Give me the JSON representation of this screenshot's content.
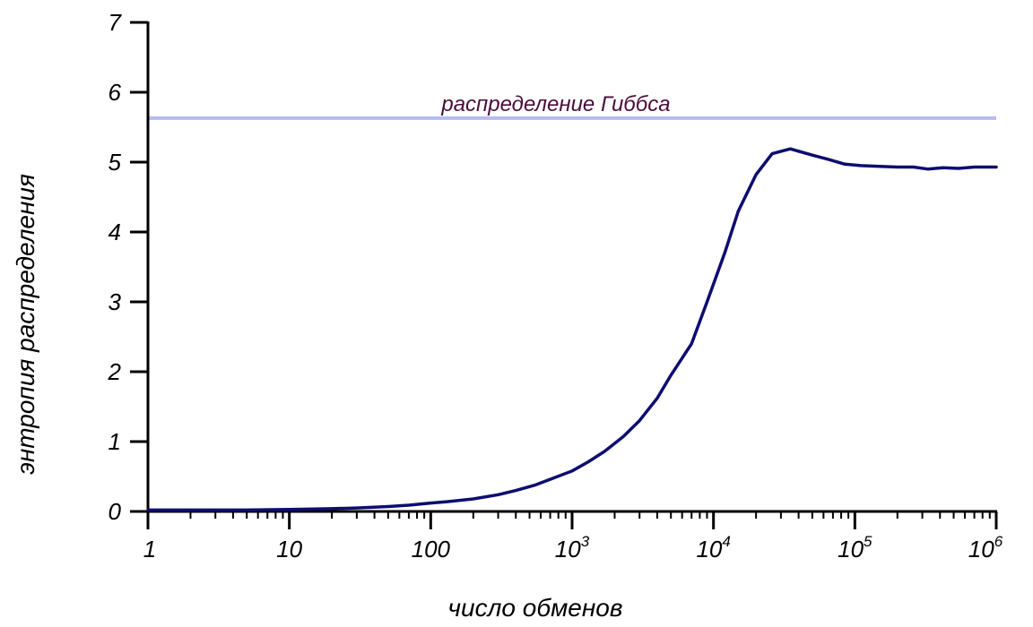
{
  "chart_data": {
    "type": "line",
    "title": "",
    "xlabel": "число обменов",
    "ylabel": "энтропия распределения",
    "x_scale": "log10",
    "xlim": [
      1,
      1000000
    ],
    "ylim": [
      0,
      7
    ],
    "grid": false,
    "x_ticks": [
      {
        "value": 1,
        "label": "1"
      },
      {
        "value": 10,
        "label": "10"
      },
      {
        "value": 100,
        "label": "100"
      },
      {
        "value": 1000,
        "label": "10",
        "exp": "3"
      },
      {
        "value": 10000,
        "label": "10",
        "exp": "4"
      },
      {
        "value": 100000,
        "label": "10",
        "exp": "5"
      },
      {
        "value": 1000000,
        "label": "10",
        "exp": "6"
      }
    ],
    "y_ticks": [
      {
        "value": 0,
        "label": "0"
      },
      {
        "value": 1,
        "label": "1"
      },
      {
        "value": 2,
        "label": "2"
      },
      {
        "value": 3,
        "label": "3"
      },
      {
        "value": 4,
        "label": "4"
      },
      {
        "value": 5,
        "label": "5"
      },
      {
        "value": 6,
        "label": "6"
      },
      {
        "value": 7,
        "label": "7"
      }
    ],
    "reference_line": {
      "label": "распределение Гиббса",
      "y": 5.63,
      "color": "#b7b9f2",
      "label_color": "#4a0d3b"
    },
    "series": [
      {
        "color": "#0d0d70",
        "points": [
          [
            1,
            0.02
          ],
          [
            2,
            0.02
          ],
          [
            3,
            0.02
          ],
          [
            5,
            0.02
          ],
          [
            10,
            0.03
          ],
          [
            20,
            0.04
          ],
          [
            30,
            0.05
          ],
          [
            50,
            0.07
          ],
          [
            70,
            0.09
          ],
          [
            100,
            0.12
          ],
          [
            130,
            0.14
          ],
          [
            200,
            0.18
          ],
          [
            300,
            0.24
          ],
          [
            400,
            0.3
          ],
          [
            550,
            0.38
          ],
          [
            700,
            0.46
          ],
          [
            1000,
            0.58
          ],
          [
            1300,
            0.71
          ],
          [
            1700,
            0.86
          ],
          [
            2300,
            1.07
          ],
          [
            3000,
            1.3
          ],
          [
            4000,
            1.62
          ],
          [
            5000,
            1.95
          ],
          [
            7000,
            2.4
          ],
          [
            9000,
            3.0
          ],
          [
            12000,
            3.7
          ],
          [
            15000,
            4.3
          ],
          [
            20000,
            4.82
          ],
          [
            26000,
            5.12
          ],
          [
            35000,
            5.19
          ],
          [
            50000,
            5.1
          ],
          [
            65000,
            5.04
          ],
          [
            85000,
            4.97
          ],
          [
            110000,
            4.95
          ],
          [
            150000,
            4.94
          ],
          [
            200000,
            4.93
          ],
          [
            260000,
            4.93
          ],
          [
            330000,
            4.9
          ],
          [
            420000,
            4.92
          ],
          [
            540000,
            4.91
          ],
          [
            700000,
            4.93
          ],
          [
            900000,
            4.93
          ],
          [
            1000000,
            4.93
          ]
        ]
      }
    ]
  }
}
